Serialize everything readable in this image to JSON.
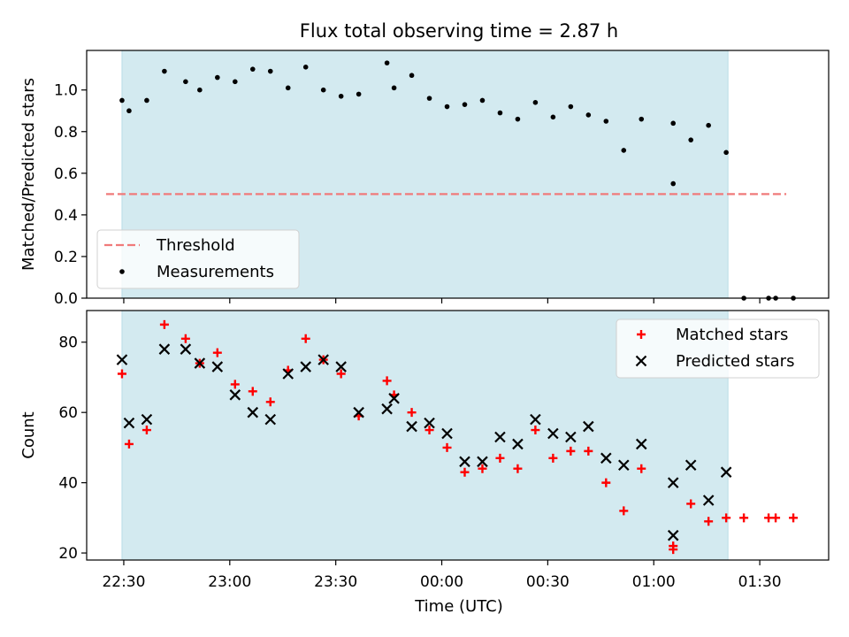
{
  "chart_data": {
    "title": "Flux total observing time = 2.87 h",
    "xlabel": "Time (UTC)",
    "x_tick_labels": [
      "22:30",
      "23:00",
      "23:30",
      "00:00",
      "00:30",
      "01:00",
      "01:30"
    ],
    "x_ticks_minutes_from_2230": [
      0,
      30,
      60,
      90,
      120,
      150,
      180
    ],
    "xlim_minutes_from_2230": [
      -10.5,
      199.5
    ],
    "observing_window_minutes_from_2230": [
      -0.5,
      171
    ],
    "shade_color": "#d3eaf0",
    "panels": [
      {
        "type": "scatter",
        "ylabel": "Matched/Predicted stars",
        "ylim": [
          0,
          1.19
        ],
        "yticks": [
          "0.0",
          "0.2",
          "0.4",
          "0.6",
          "0.8",
          "1.0"
        ],
        "ytick_values": [
          0,
          0.2,
          0.4,
          0.6,
          0.8,
          1.0
        ],
        "legend_position": "lower-left",
        "threshold": {
          "name": "Threshold",
          "value": 0.5,
          "x_range": [
            0,
            189
          ],
          "color": "#f07a7a"
        },
        "series": [
          {
            "name": "Measurements",
            "color": "#000000",
            "marker": "dot",
            "points": [
              [
                -0.5,
                0.95
              ],
              [
                1.5,
                0.9
              ],
              [
                6.5,
                0.95
              ],
              [
                11.5,
                1.09
              ],
              [
                17.5,
                1.04
              ],
              [
                21.5,
                1.0
              ],
              [
                26.5,
                1.06
              ],
              [
                31.5,
                1.04
              ],
              [
                36.5,
                1.1
              ],
              [
                41.5,
                1.09
              ],
              [
                46.5,
                1.01
              ],
              [
                51.5,
                1.11
              ],
              [
                56.5,
                1.0
              ],
              [
                61.5,
                0.97
              ],
              [
                66.5,
                0.98
              ],
              [
                74.5,
                1.13
              ],
              [
                76.5,
                1.01
              ],
              [
                81.5,
                1.07
              ],
              [
                86.5,
                0.96
              ],
              [
                91.5,
                0.92
              ],
              [
                96.5,
                0.93
              ],
              [
                101.5,
                0.95
              ],
              [
                106.5,
                0.89
              ],
              [
                111.5,
                0.86
              ],
              [
                116.5,
                0.94
              ],
              [
                121.5,
                0.87
              ],
              [
                126.5,
                0.92
              ],
              [
                131.5,
                0.88
              ],
              [
                136.5,
                0.85
              ],
              [
                141.5,
                0.71
              ],
              [
                146.5,
                0.86
              ],
              [
                155.5,
                0.84
              ],
              [
                155.5,
                0.55
              ],
              [
                160.5,
                0.76
              ],
              [
                165.5,
                0.83
              ],
              [
                170.5,
                0.7
              ],
              [
                175.5,
                0.0
              ],
              [
                182.5,
                0.0
              ],
              [
                184.5,
                0.0
              ],
              [
                189.5,
                0.0
              ]
            ]
          }
        ]
      },
      {
        "type": "scatter",
        "ylabel": "Count",
        "ylim": [
          18,
          89
        ],
        "yticks": [
          "20",
          "40",
          "60",
          "80"
        ],
        "ytick_values": [
          20,
          40,
          60,
          80
        ],
        "legend_position": "upper-right",
        "series": [
          {
            "name": "Matched stars",
            "color": "#ff0000",
            "marker": "plus",
            "points": [
              [
                -0.5,
                71
              ],
              [
                1.5,
                51
              ],
              [
                6.5,
                55
              ],
              [
                11.5,
                85
              ],
              [
                17.5,
                81
              ],
              [
                21.5,
                74
              ],
              [
                26.5,
                77
              ],
              [
                31.5,
                68
              ],
              [
                36.5,
                66
              ],
              [
                41.5,
                63
              ],
              [
                46.5,
                72
              ],
              [
                51.5,
                81
              ],
              [
                56.5,
                75
              ],
              [
                61.5,
                71
              ],
              [
                66.5,
                59
              ],
              [
                74.5,
                69
              ],
              [
                76.5,
                65
              ],
              [
                81.5,
                60
              ],
              [
                86.5,
                55
              ],
              [
                91.5,
                50
              ],
              [
                96.5,
                43
              ],
              [
                101.5,
                44
              ],
              [
                106.5,
                47
              ],
              [
                111.5,
                44
              ],
              [
                116.5,
                55
              ],
              [
                121.5,
                47
              ],
              [
                126.5,
                49
              ],
              [
                131.5,
                49
              ],
              [
                136.5,
                40
              ],
              [
                141.5,
                32
              ],
              [
                146.5,
                44
              ],
              [
                155.5,
                22
              ],
              [
                155.5,
                21
              ],
              [
                160.5,
                34
              ],
              [
                165.5,
                29
              ],
              [
                170.5,
                30
              ],
              [
                175.5,
                30
              ],
              [
                182.5,
                30
              ],
              [
                184.5,
                30
              ],
              [
                189.5,
                30
              ]
            ]
          },
          {
            "name": "Predicted stars",
            "color": "#000000",
            "marker": "x",
            "points": [
              [
                -0.5,
                75
              ],
              [
                1.5,
                57
              ],
              [
                6.5,
                58
              ],
              [
                11.5,
                78
              ],
              [
                17.5,
                78
              ],
              [
                21.5,
                74
              ],
              [
                26.5,
                73
              ],
              [
                31.5,
                65
              ],
              [
                36.5,
                60
              ],
              [
                41.5,
                58
              ],
              [
                46.5,
                71
              ],
              [
                51.5,
                73
              ],
              [
                56.5,
                75
              ],
              [
                61.5,
                73
              ],
              [
                66.5,
                60
              ],
              [
                74.5,
                61
              ],
              [
                76.5,
                64
              ],
              [
                81.5,
                56
              ],
              [
                86.5,
                57
              ],
              [
                91.5,
                54
              ],
              [
                96.5,
                46
              ],
              [
                101.5,
                46
              ],
              [
                106.5,
                53
              ],
              [
                111.5,
                51
              ],
              [
                116.5,
                58
              ],
              [
                121.5,
                54
              ],
              [
                126.5,
                53
              ],
              [
                131.5,
                56
              ],
              [
                136.5,
                47
              ],
              [
                141.5,
                45
              ],
              [
                146.5,
                51
              ],
              [
                155.5,
                40
              ],
              [
                155.5,
                25
              ],
              [
                160.5,
                45
              ],
              [
                165.5,
                35
              ],
              [
                170.5,
                43
              ]
            ]
          }
        ]
      }
    ]
  }
}
